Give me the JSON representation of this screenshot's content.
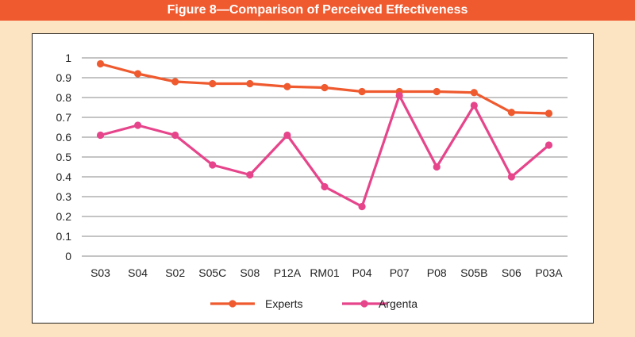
{
  "figure": {
    "title": "Figure 8—Comparison of Perceived Effectiveness"
  },
  "colors": {
    "background": "#fce3c1",
    "title_bar": "#ef5a2f",
    "experts": "#ef5a2f",
    "argenta": "#e6458b",
    "grid": "#8a8a8a"
  },
  "chart_data": {
    "type": "line",
    "title": "",
    "xlabel": "",
    "ylabel": "",
    "ylim": [
      0,
      1
    ],
    "y_ticks": [
      "0",
      "0.1",
      "0.2",
      "0.3",
      "0.4",
      "0.5",
      "0.6",
      "0.7",
      "0.8",
      "0.9",
      "1"
    ],
    "grid": true,
    "legend_position": "bottom",
    "categories": [
      "S03",
      "S04",
      "S02",
      "S05C",
      "S08",
      "P12A",
      "RM01",
      "P04",
      "P07",
      "P08",
      "S05B",
      "S06",
      "P03A"
    ],
    "series": [
      {
        "name": "Experts",
        "color": "#ef5a2f",
        "values": [
          0.97,
          0.92,
          0.88,
          0.87,
          0.87,
          0.855,
          0.85,
          0.83,
          0.83,
          0.83,
          0.825,
          0.725,
          0.72
        ]
      },
      {
        "name": "Argenta",
        "color": "#e6458b",
        "values": [
          0.61,
          0.66,
          0.61,
          0.46,
          0.41,
          0.61,
          0.35,
          0.25,
          0.81,
          0.45,
          0.76,
          0.4,
          0.56
        ]
      }
    ]
  }
}
